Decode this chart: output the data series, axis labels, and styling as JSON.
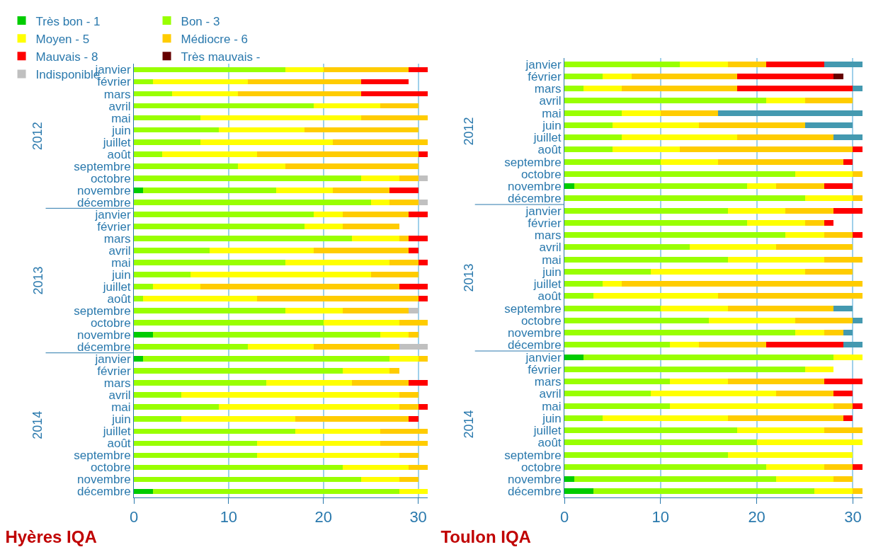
{
  "chart_data": [
    {
      "type": "bar",
      "title": "Hyères IQA",
      "orientation": "horizontal",
      "stacked": true,
      "legend": "top left",
      "grid": "x",
      "categories": [
        "janvier",
        "février",
        "mars",
        "avril",
        "mai",
        "juin",
        "juillet",
        "août",
        "septembre",
        "octobre",
        "novembre",
        "décembre",
        "janvier",
        "février",
        "mars",
        "avril",
        "mai",
        "juin",
        "juillet",
        "août",
        "septembre",
        "octobre",
        "novembre",
        "décembre",
        "janvier",
        "février",
        "mars",
        "avril",
        "mai",
        "juin",
        "juillet",
        "août",
        "septembre",
        "octobre",
        "novembre",
        "décembre"
      ],
      "annotations": [
        "2012",
        "2013",
        "2014"
      ],
      "xlim": [
        0,
        31
      ],
      "xticks": [
        0,
        10,
        20,
        30
      ],
      "series": [
        {
          "name": "Très bon - 1",
          "color": "#00cc00",
          "values": [
            0,
            0,
            0,
            0,
            0,
            0,
            0,
            0,
            0,
            0,
            1,
            0,
            0,
            0,
            0,
            0,
            0,
            0,
            0,
            0,
            0,
            0,
            2,
            0,
            1,
            0,
            0,
            0,
            0,
            0,
            0,
            0,
            0,
            0,
            0,
            2
          ]
        },
        {
          "name": "Bon - 3",
          "color": "#99ff00",
          "values": [
            16,
            2,
            4,
            19,
            7,
            9,
            7,
            3,
            11,
            24,
            14,
            25,
            19,
            18,
            23,
            8,
            16,
            6,
            2,
            1,
            16,
            20,
            24,
            12,
            26,
            22,
            14,
            5,
            9,
            5,
            17,
            13,
            13,
            22,
            24,
            26
          ]
        },
        {
          "name": "Moyen - 5",
          "color": "#ffff00",
          "values": [
            4,
            10,
            7,
            7,
            17,
            9,
            14,
            10,
            5,
            4,
            6,
            2,
            3,
            4,
            5,
            11,
            11,
            19,
            5,
            12,
            6,
            8,
            3,
            7,
            3,
            5,
            9,
            23,
            19,
            12,
            9,
            13,
            15,
            7,
            4,
            3
          ]
        },
        {
          "name": "Médiocre - 6",
          "color": "#ffcc00",
          "values": [
            9,
            12,
            13,
            4,
            7,
            12,
            10,
            17,
            14,
            2,
            6,
            3,
            7,
            6,
            1,
            10,
            3,
            5,
            21,
            17,
            7,
            3,
            1,
            9,
            1,
            1,
            6,
            2,
            2,
            12,
            5,
            5,
            2,
            2,
            2,
            0
          ]
        },
        {
          "name": "Mauvais - 8",
          "color": "#ff0000",
          "values": [
            2,
            5,
            7,
            0,
            0,
            0,
            0,
            1,
            0,
            0,
            3,
            0,
            2,
            0,
            2,
            1,
            1,
            0,
            3,
            1,
            0,
            0,
            0,
            0,
            0,
            0,
            2,
            0,
            1,
            1,
            0,
            0,
            0,
            0,
            0,
            0
          ]
        },
        {
          "name": "Très mauvais -",
          "color": "#660000",
          "values": [
            0,
            0,
            0,
            0,
            0,
            0,
            0,
            0,
            0,
            0,
            0,
            0,
            0,
            0,
            0,
            0,
            0,
            0,
            0,
            0,
            0,
            0,
            0,
            0,
            0,
            0,
            0,
            0,
            0,
            0,
            0,
            0,
            0,
            0,
            0,
            0
          ]
        },
        {
          "name": "Indisponible",
          "color": "#c0c0c0",
          "values": [
            0,
            0,
            0,
            0,
            0,
            0,
            0,
            0,
            0,
            1,
            0,
            1,
            0,
            0,
            0,
            0,
            0,
            0,
            0,
            0,
            1,
            0,
            0,
            3,
            0,
            0,
            0,
            0,
            0,
            0,
            0,
            0,
            0,
            0,
            0,
            0
          ]
        }
      ]
    },
    {
      "type": "bar",
      "title": "Toulon IQA",
      "orientation": "horizontal",
      "stacked": true,
      "grid": "x",
      "categories": [
        "janvier",
        "février",
        "mars",
        "avril",
        "mai",
        "juin",
        "juillet",
        "août",
        "septembre",
        "octobre",
        "novembre",
        "décembre",
        "janvier",
        "février",
        "mars",
        "avril",
        "mai",
        "juin",
        "juillet",
        "août",
        "septembre",
        "octobre",
        "novembre",
        "décembre",
        "janvier",
        "février",
        "mars",
        "avril",
        "mai",
        "juin",
        "juillet",
        "août",
        "septembre",
        "octobre",
        "novembre",
        "décembre"
      ],
      "annotations": [
        "2012",
        "2013",
        "2014"
      ],
      "xlim": [
        0,
        31
      ],
      "xticks": [
        0,
        10,
        20,
        30
      ],
      "series": [
        {
          "color": "#00cc00",
          "values": [
            0,
            0,
            0,
            0,
            0,
            0,
            0,
            0,
            0,
            0,
            1,
            0,
            0,
            0,
            0,
            0,
            0,
            0,
            0,
            0,
            0,
            0,
            0,
            0,
            2,
            0,
            0,
            0,
            0,
            0,
            0,
            0,
            0,
            0,
            1,
            3
          ]
        },
        {
          "color": "#99ff00",
          "values": [
            12,
            4,
            2,
            21,
            6,
            5,
            6,
            5,
            10,
            24,
            18,
            25,
            17,
            19,
            23,
            13,
            17,
            9,
            4,
            3,
            10,
            15,
            24,
            11,
            26,
            25,
            11,
            9,
            11,
            4,
            18,
            20,
            17,
            21,
            21,
            23
          ]
        },
        {
          "color": "#ffff00",
          "values": [
            5,
            3,
            4,
            4,
            4,
            9,
            12,
            7,
            6,
            6,
            3,
            5,
            6,
            6,
            4,
            9,
            10,
            16,
            2,
            13,
            7,
            9,
            3,
            3,
            3,
            3,
            6,
            13,
            17,
            13,
            9,
            11,
            13,
            6,
            6,
            4
          ]
        },
        {
          "color": "#ffcc00",
          "values": [
            4,
            11,
            12,
            5,
            6,
            11,
            10,
            18,
            13,
            1,
            5,
            1,
            5,
            2,
            3,
            8,
            4,
            5,
            25,
            15,
            11,
            6,
            2,
            7,
            0,
            0,
            10,
            6,
            2,
            12,
            4,
            0,
            0,
            3,
            2,
            1
          ]
        },
        {
          "color": "#ff0000",
          "values": [
            6,
            10,
            12,
            0,
            0,
            0,
            0,
            1,
            1,
            0,
            3,
            0,
            3,
            1,
            1,
            0,
            0,
            0,
            0,
            0,
            0,
            0,
            0,
            8,
            0,
            0,
            4,
            2,
            1,
            1,
            0,
            0,
            0,
            1,
            0,
            0
          ]
        },
        {
          "color": "#660000",
          "values": [
            0,
            1,
            0,
            0,
            0,
            0,
            0,
            0,
            0,
            0,
            0,
            0,
            0,
            0,
            0,
            0,
            0,
            0,
            0,
            0,
            0,
            0,
            0,
            0,
            0,
            0,
            0,
            0,
            0,
            0,
            0,
            0,
            0,
            0,
            0,
            0
          ]
        },
        {
          "color": "#4499b0",
          "values": [
            4,
            0,
            1,
            0,
            15,
            5,
            3,
            0,
            0,
            0,
            0,
            0,
            0,
            0,
            0,
            0,
            0,
            0,
            0,
            0,
            2,
            1,
            1,
            2,
            0,
            0,
            0,
            0,
            0,
            0,
            0,
            0,
            0,
            0,
            0,
            0
          ]
        }
      ]
    }
  ]
}
